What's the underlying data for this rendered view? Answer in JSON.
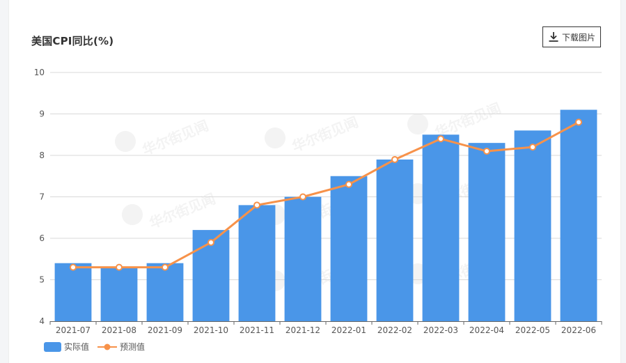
{
  "chart_title": "美国CPI同比(%)",
  "toolbar": {
    "download_label": "下载图片",
    "download_icon": "download-icon"
  },
  "watermark": "华尔街见闻",
  "colors": {
    "bar": "#4a96e8",
    "line": "#f7924a",
    "point_fill": "#ffffff",
    "grid": "#d9d9d9",
    "axis": "#666666",
    "tick_text": "#555555"
  },
  "chart_data": {
    "type": "bar",
    "title": "美国CPI同比(%)",
    "xlabel": "",
    "ylabel": "",
    "ylim": [
      4,
      10
    ],
    "yticks": [
      4,
      5,
      6,
      7,
      8,
      9,
      10
    ],
    "grid": true,
    "legend_position": "bottom-left",
    "categories": [
      "2021-07",
      "2021-08",
      "2021-09",
      "2021-10",
      "2021-11",
      "2021-12",
      "2022-01",
      "2022-02",
      "2022-03",
      "2022-04",
      "2022-05",
      "2022-06"
    ],
    "series": [
      {
        "name": "实际值",
        "type": "bar",
        "values": [
          5.4,
          5.3,
          5.4,
          6.2,
          6.8,
          7.0,
          7.5,
          7.9,
          8.5,
          8.3,
          8.6,
          9.1
        ]
      },
      {
        "name": "预测值",
        "type": "line",
        "values": [
          5.3,
          5.3,
          5.3,
          5.9,
          6.8,
          7.0,
          7.3,
          7.9,
          8.4,
          8.1,
          8.2,
          8.8
        ]
      }
    ]
  }
}
